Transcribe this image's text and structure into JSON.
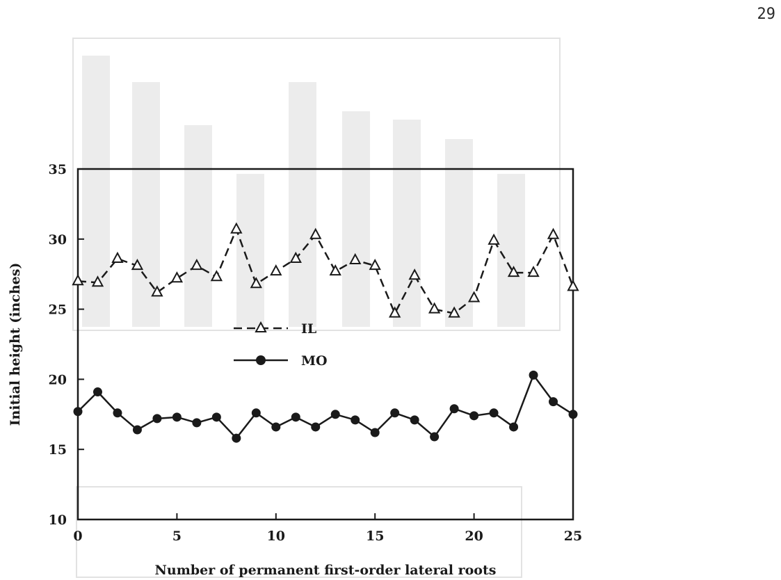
{
  "page": {
    "number": "29"
  },
  "chart_data": {
    "type": "line",
    "xlabel": "Number of permanent first-order lateral roots",
    "ylabel": "Initial height (inches)",
    "xlim": [
      0,
      25
    ],
    "ylim": [
      10,
      35
    ],
    "xticks": [
      0,
      5,
      10,
      15,
      20,
      25
    ],
    "yticks": [
      10,
      15,
      20,
      25,
      30,
      35
    ],
    "x": [
      0,
      1,
      2,
      3,
      4,
      5,
      6,
      7,
      8,
      9,
      10,
      11,
      12,
      13,
      14,
      15,
      16,
      17,
      18,
      19,
      20,
      21,
      22,
      23,
      24,
      25
    ],
    "series": [
      {
        "name": "IL",
        "marker": "open-triangle",
        "line": "dashed",
        "values": [
          27.0,
          26.9,
          28.6,
          28.1,
          26.2,
          27.2,
          28.1,
          27.3,
          30.7,
          26.8,
          27.7,
          28.6,
          30.3,
          27.7,
          28.5,
          28.1,
          24.7,
          27.4,
          25.0,
          24.7,
          25.8,
          29.9,
          27.6,
          27.6,
          30.3,
          26.6
        ]
      },
      {
        "name": "MO",
        "marker": "filled-circle",
        "line": "solid",
        "values": [
          17.7,
          19.1,
          17.6,
          16.4,
          17.2,
          17.3,
          16.9,
          17.3,
          15.8,
          17.6,
          16.6,
          17.3,
          16.6,
          17.5,
          17.1,
          16.2,
          17.6,
          17.1,
          15.9,
          17.9,
          17.4,
          17.6,
          16.6,
          20.3,
          18.4,
          17.5
        ]
      }
    ],
    "legend": {
      "position": "center-left"
    },
    "grid": false
  }
}
